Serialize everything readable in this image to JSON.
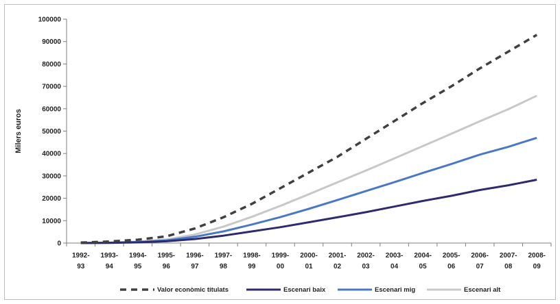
{
  "chart_data": {
    "type": "line",
    "title": "",
    "xlabel": "",
    "ylabel": "Milers euros",
    "ylim": [
      0,
      100000
    ],
    "yticks": [
      0,
      10000,
      20000,
      30000,
      40000,
      50000,
      60000,
      70000,
      80000,
      90000,
      100000
    ],
    "grid": false,
    "legend_position": "bottom",
    "categories": [
      [
        "1992-",
        "93"
      ],
      [
        "1993-",
        "94"
      ],
      [
        "1994-",
        "95"
      ],
      [
        "1995-",
        "96"
      ],
      [
        "1996-",
        "97"
      ],
      [
        "1997-",
        "98"
      ],
      [
        "1998-",
        "99"
      ],
      [
        "1999-",
        "00"
      ],
      [
        "2000-",
        "01"
      ],
      [
        "2001-",
        "02"
      ],
      [
        "2002-",
        "03"
      ],
      [
        "2003-",
        "04"
      ],
      [
        "2004-",
        "05"
      ],
      [
        "2005-",
        "06"
      ],
      [
        "2006-",
        "07"
      ],
      [
        "2007-",
        "08"
      ],
      [
        "2008-",
        "09"
      ]
    ],
    "series": [
      {
        "name": "Valor econòmic titulats",
        "color": "#404040",
        "dash": "dashed",
        "values": [
          200,
          700,
          1500,
          3000,
          6500,
          11500,
          17500,
          24500,
          31500,
          38500,
          46500,
          54500,
          62500,
          70000,
          78000,
          85500,
          93000
        ]
      },
      {
        "name": "Escenari baix",
        "color": "#2e2a6e",
        "dash": "solid",
        "values": [
          0,
          100,
          300,
          800,
          1800,
          3300,
          5200,
          7100,
          9300,
          11500,
          13800,
          16300,
          18800,
          21100,
          23700,
          25800,
          28300
        ]
      },
      {
        "name": "Escenari mig",
        "color": "#4a78c8",
        "dash": "solid",
        "values": [
          0,
          150,
          450,
          1200,
          2800,
          5200,
          8300,
          11600,
          15300,
          19200,
          23200,
          27200,
          31300,
          35300,
          39500,
          43000,
          47000
        ]
      },
      {
        "name": "Escenari alt",
        "color": "#c8c8c8",
        "dash": "solid",
        "values": [
          0,
          200,
          600,
          1600,
          3800,
          7300,
          11700,
          16600,
          21800,
          27100,
          32400,
          37800,
          43300,
          48800,
          54400,
          59800,
          65800
        ]
      }
    ]
  }
}
